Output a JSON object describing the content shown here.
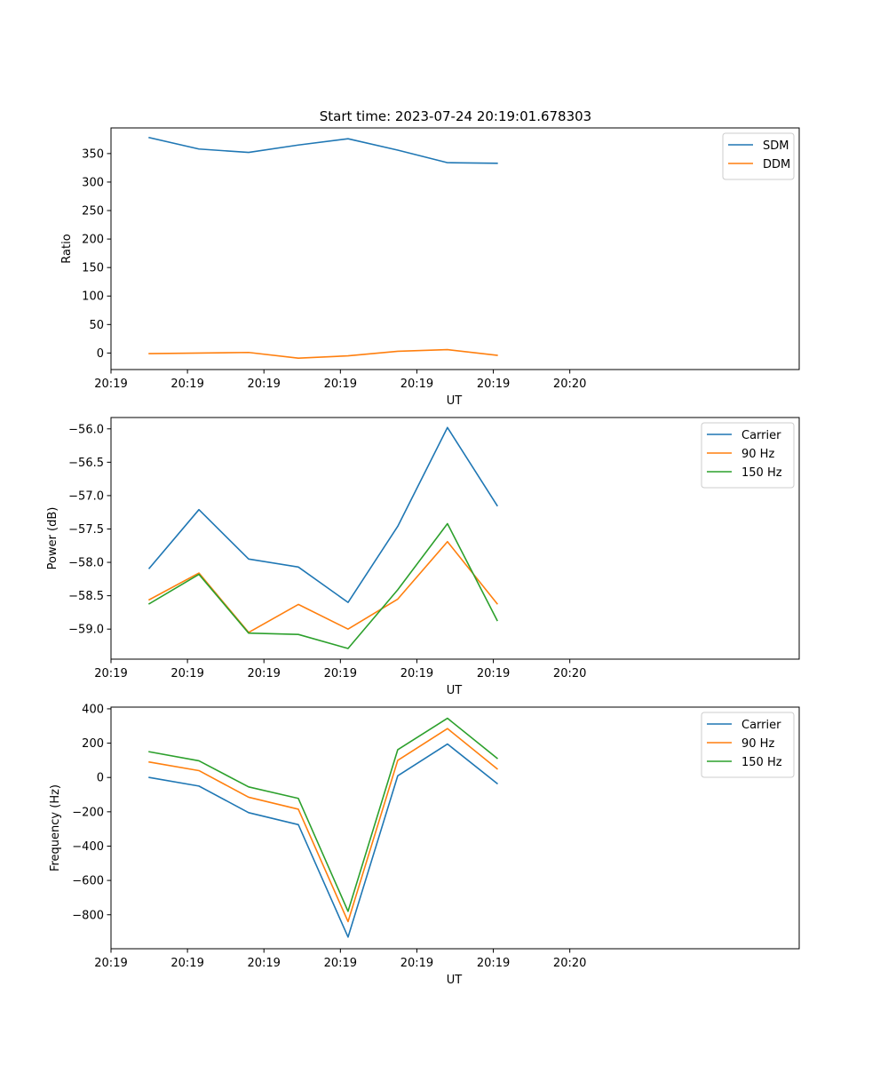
{
  "figure": {
    "title": "Start time: 2023-07-24 20:19:01.678303"
  },
  "chart_data": [
    {
      "type": "line",
      "title": "Start time: 2023-07-24 20:19:01.678303",
      "xlabel": "UT",
      "ylabel": "Ratio",
      "xlim": [
        0,
        9
      ],
      "ylim": [
        -29,
        395
      ],
      "x": [
        0.5,
        1.15,
        1.8,
        2.45,
        3.1,
        3.75,
        4.4,
        5.05
      ],
      "x_ticks": [
        0,
        1,
        2,
        3,
        4,
        5,
        6
      ],
      "x_tick_labels": [
        "20:19",
        "20:19",
        "20:19",
        "20:19",
        "20:19",
        "20:19",
        "20:20"
      ],
      "y_ticks": [
        0,
        50,
        100,
        150,
        200,
        250,
        300,
        350
      ],
      "y_tick_labels": [
        "0",
        "50",
        "100",
        "150",
        "200",
        "250",
        "300",
        "350"
      ],
      "legend_position": "top-right",
      "series": [
        {
          "name": "SDM",
          "color": "#1f77b4",
          "values": [
            378,
            358,
            352,
            365,
            376,
            356,
            334,
            333
          ]
        },
        {
          "name": "DDM",
          "color": "#ff7f0e",
          "values": [
            -1,
            0,
            1,
            -9,
            -5,
            3,
            6,
            -4
          ]
        }
      ]
    },
    {
      "type": "line",
      "title": "",
      "xlabel": "UT",
      "ylabel": "Power (dB)",
      "xlim": [
        0,
        9
      ],
      "ylim": [
        -59.45,
        -55.83
      ],
      "x": [
        0.5,
        1.15,
        1.8,
        2.45,
        3.1,
        3.75,
        4.4,
        5.05
      ],
      "x_ticks": [
        0,
        1,
        2,
        3,
        4,
        5,
        6
      ],
      "x_tick_labels": [
        "20:19",
        "20:19",
        "20:19",
        "20:19",
        "20:19",
        "20:19",
        "20:20"
      ],
      "y_ticks": [
        -59.0,
        -58.5,
        -58.0,
        -57.5,
        -57.0,
        -56.5,
        -56.0
      ],
      "y_tick_labels": [
        "−59.0",
        "−58.5",
        "−58.0",
        "−57.5",
        "−57.0",
        "−56.5",
        "−56.0"
      ],
      "legend_position": "top-right",
      "series": [
        {
          "name": "Carrier",
          "color": "#1f77b4",
          "values": [
            -58.09,
            -57.21,
            -57.95,
            -58.07,
            -58.6,
            -57.46,
            -55.98,
            -57.15
          ]
        },
        {
          "name": "90 Hz",
          "color": "#ff7f0e",
          "values": [
            -58.56,
            -58.16,
            -59.05,
            -58.63,
            -59.0,
            -58.55,
            -57.69,
            -58.62
          ]
        },
        {
          "name": "150 Hz",
          "color": "#2ca02c",
          "values": [
            -58.62,
            -58.18,
            -59.06,
            -59.08,
            -59.29,
            -58.41,
            -57.42,
            -58.87
          ]
        }
      ]
    },
    {
      "type": "line",
      "title": "",
      "xlabel": "UT",
      "ylabel": "Frequency (Hz)",
      "xlim": [
        0,
        9
      ],
      "ylim": [
        -998,
        410
      ],
      "x": [
        0.5,
        1.15,
        1.8,
        2.45,
        3.1,
        3.75,
        4.4,
        5.05
      ],
      "x_ticks": [
        0,
        1,
        2,
        3,
        4,
        5,
        6
      ],
      "x_tick_labels": [
        "20:19",
        "20:19",
        "20:19",
        "20:19",
        "20:19",
        "20:19",
        "20:20"
      ],
      "y_ticks": [
        -800,
        -600,
        -400,
        -200,
        0,
        200,
        400
      ],
      "y_tick_labels": [
        "−800",
        "−600",
        "−400",
        "−200",
        "0",
        "200",
        "400"
      ],
      "legend_position": "top-right",
      "series": [
        {
          "name": "Carrier",
          "color": "#1f77b4",
          "values": [
            0,
            -50,
            -205,
            -275,
            -930,
            10,
            195,
            -35
          ]
        },
        {
          "name": "90 Hz",
          "color": "#ff7f0e",
          "values": [
            90,
            40,
            -115,
            -185,
            -840,
            100,
            285,
            50
          ]
        },
        {
          "name": "150 Hz",
          "color": "#2ca02c",
          "values": [
            150,
            97,
            -55,
            -122,
            -780,
            162,
            345,
            112
          ]
        }
      ]
    }
  ]
}
